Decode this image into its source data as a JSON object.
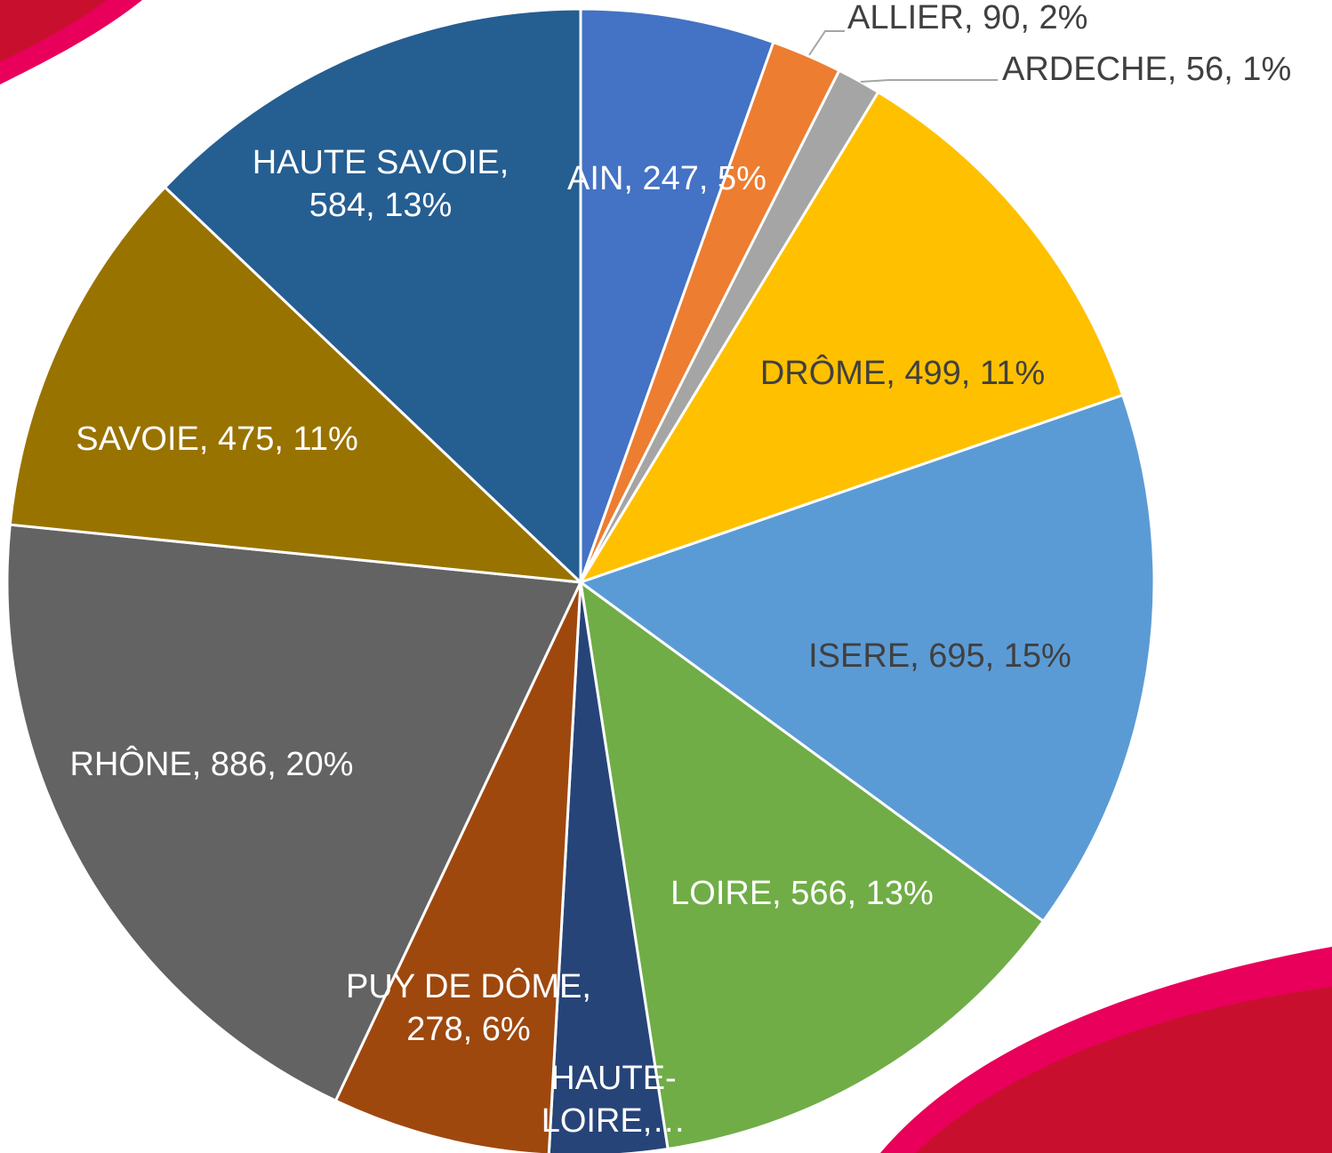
{
  "chart_data": {
    "type": "pie",
    "categories": [
      "AIN",
      "ALLIER",
      "ARDECHE",
      "DRÔME",
      "ISERE",
      "LOIRE",
      "HAUTE-LOIRE",
      "PUY DE DÔME",
      "RHÔNE",
      "SAVOIE",
      "HAUTE SAVOIE"
    ],
    "values": [
      247,
      90,
      56,
      499,
      695,
      566,
      150,
      278,
      886,
      475,
      584
    ],
    "value_labels": [
      [
        "AIN, 247, 5%"
      ],
      [
        "ALLIER, 90, 2%"
      ],
      [
        "ARDECHE, 56, 1%"
      ],
      [
        "DRÔME, 499, 11%"
      ],
      [
        "ISERE, 695, 15%"
      ],
      [
        "LOIRE, 566, 13%"
      ],
      [
        "HAUTE-",
        "LOIRE,…"
      ],
      [
        "PUY DE DÔME,",
        "278, 6%"
      ],
      [
        "RHÔNE, 886, 20%"
      ],
      [
        "SAVOIE, 475, 11%"
      ],
      [
        "HAUTE SAVOIE,",
        "584, 13%"
      ]
    ],
    "colors": [
      "#4472c4",
      "#ed7d31",
      "#a5a5a5",
      "#ffc000",
      "#5b9bd5",
      "#70ad47",
      "#264478",
      "#9e480e",
      "#636363",
      "#997300",
      "#255e91"
    ]
  }
}
